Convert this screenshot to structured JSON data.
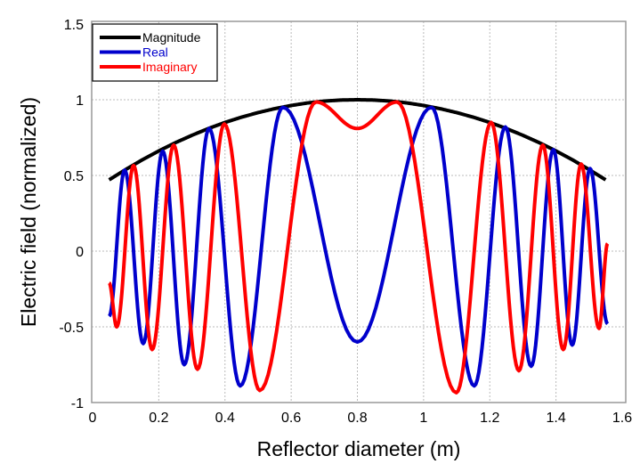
{
  "chart_data": {
    "type": "line",
    "title": "",
    "xlabel": "Reflector diameter (m)",
    "ylabel": "Electric field (normalized)",
    "xlim": [
      0,
      1.6
    ],
    "ylim": [
      -1,
      1.5
    ],
    "xticks": [
      "0",
      "0.2",
      "0.4",
      "0.6",
      "0.8",
      "1",
      "1.2",
      "1.4",
      "1.6"
    ],
    "yticks": [
      "-1",
      "-0.5",
      "0",
      "0.5",
      "1",
      "1.5"
    ],
    "grid": true,
    "legend_position": "top-left",
    "series": [
      {
        "name": "Magnitude",
        "color": "#000000",
        "points": [
          [
            0.05,
            0.471
          ],
          [
            0.1,
            0.539
          ],
          [
            0.15,
            0.603
          ],
          [
            0.2,
            0.662
          ],
          [
            0.25,
            0.716
          ],
          [
            0.3,
            0.765
          ],
          [
            0.35,
            0.81
          ],
          [
            0.4,
            0.85
          ],
          [
            0.45,
            0.885
          ],
          [
            0.5,
            0.915
          ],
          [
            0.55,
            0.941
          ],
          [
            0.6,
            0.962
          ],
          [
            0.65,
            0.979
          ],
          [
            0.7,
            0.991
          ],
          [
            0.75,
            0.998
          ],
          [
            0.8,
            1.0
          ],
          [
            0.85,
            0.998
          ],
          [
            0.9,
            0.991
          ],
          [
            0.95,
            0.979
          ],
          [
            1.0,
            0.962
          ],
          [
            1.05,
            0.941
          ],
          [
            1.1,
            0.915
          ],
          [
            1.15,
            0.885
          ],
          [
            1.2,
            0.85
          ],
          [
            1.25,
            0.81
          ],
          [
            1.3,
            0.765
          ],
          [
            1.35,
            0.716
          ],
          [
            1.4,
            0.662
          ],
          [
            1.45,
            0.603
          ],
          [
            1.5,
            0.539
          ],
          [
            1.55,
            0.471
          ]
        ]
      },
      {
        "name": "Real",
        "color": "#0000cc",
        "points": [
          [
            0.05,
            -0.43
          ],
          [
            0.097,
            0.535
          ],
          [
            0.153,
            -0.61
          ],
          [
            0.212,
            0.66
          ],
          [
            0.277,
            -0.75
          ],
          [
            0.352,
            0.81
          ],
          [
            0.446,
            -0.89
          ],
          [
            0.575,
            0.95
          ],
          [
            0.8,
            -0.6
          ],
          [
            1.024,
            0.95
          ],
          [
            1.153,
            -0.89
          ],
          [
            1.247,
            0.82
          ],
          [
            1.325,
            -0.76
          ],
          [
            1.392,
            0.67
          ],
          [
            1.449,
            -0.62
          ],
          [
            1.503,
            0.545
          ],
          [
            1.556,
            -0.48
          ]
        ]
      },
      {
        "name": "Imaginary",
        "color": "#ff0000",
        "points": [
          [
            0.05,
            -0.21
          ],
          [
            0.073,
            -0.5
          ],
          [
            0.124,
            0.565
          ],
          [
            0.18,
            -0.65
          ],
          [
            0.245,
            0.7
          ],
          [
            0.317,
            -0.78
          ],
          [
            0.398,
            0.84
          ],
          [
            0.505,
            -0.92
          ],
          [
            0.675,
            0.985
          ],
          [
            0.8,
            0.81
          ],
          [
            0.92,
            0.985
          ],
          [
            1.099,
            -0.935
          ],
          [
            1.204,
            0.85
          ],
          [
            1.288,
            -0.79
          ],
          [
            1.36,
            0.7
          ],
          [
            1.422,
            -0.65
          ],
          [
            1.476,
            0.575
          ],
          [
            1.53,
            -0.51
          ],
          [
            1.556,
            0.05
          ]
        ]
      }
    ]
  }
}
